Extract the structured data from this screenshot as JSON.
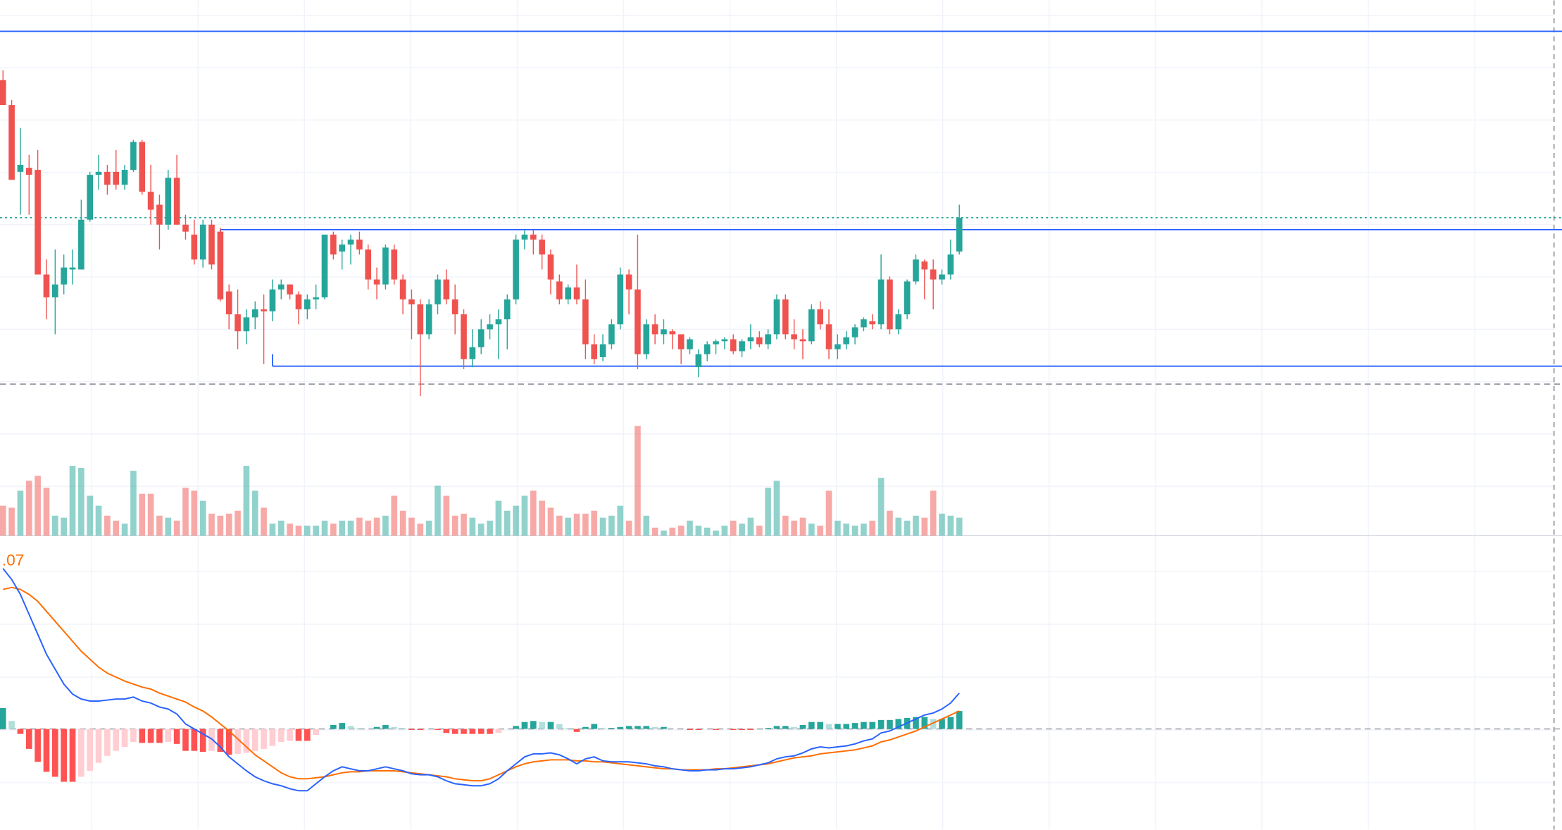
{
  "chart_data": [
    {
      "type": "candlestick",
      "ylim": [
        0,
        410
      ],
      "up_color": "#26a69a",
      "down_color": "#ef5350",
      "ohlc": [
        [
          330,
          340,
          305,
          305
        ],
        [
          305,
          310,
          230,
          230
        ],
        [
          238,
          282,
          195,
          245
        ],
        [
          242,
          255,
          195,
          235
        ],
        [
          240,
          260,
          135,
          135
        ],
        [
          135,
          150,
          90,
          112
        ],
        [
          112,
          160,
          75,
          125
        ],
        [
          125,
          155,
          115,
          142
        ],
        [
          140,
          160,
          125,
          142
        ],
        [
          140,
          210,
          140,
          190
        ],
        [
          190,
          238,
          188,
          235
        ],
        [
          235,
          255,
          220,
          238
        ],
        [
          238,
          245,
          215,
          225
        ],
        [
          238,
          260,
          220,
          225
        ],
        [
          225,
          245,
          220,
          240
        ],
        [
          240,
          270,
          238,
          268
        ],
        [
          268,
          270,
          215,
          218
        ],
        [
          218,
          245,
          185,
          200
        ],
        [
          205,
          215,
          160,
          185
        ],
        [
          185,
          240,
          180,
          232
        ],
        [
          232,
          255,
          185,
          185
        ],
        [
          185,
          195,
          170,
          178
        ],
        [
          175,
          190,
          145,
          150
        ],
        [
          150,
          190,
          142,
          185
        ],
        [
          185,
          190,
          140,
          145
        ],
        [
          178,
          182,
          108,
          110
        ],
        [
          118,
          125,
          80,
          95
        ],
        [
          95,
          120,
          60,
          78
        ],
        [
          78,
          100,
          65,
          92
        ],
        [
          92,
          108,
          80,
          100
        ],
        [
          100,
          115,
          45,
          98
        ],
        [
          98,
          130,
          88,
          120
        ],
        [
          120,
          130,
          110,
          125
        ],
        [
          125,
          125,
          110,
          115
        ],
        [
          115,
          118,
          85,
          100
        ],
        [
          100,
          115,
          90,
          110
        ],
        [
          110,
          125,
          100,
          112
        ],
        [
          112,
          175,
          110,
          175
        ],
        [
          175,
          178,
          150,
          155
        ],
        [
          158,
          170,
          140,
          165
        ],
        [
          165,
          175,
          145,
          170
        ],
        [
          170,
          178,
          155,
          160
        ],
        [
          160,
          165,
          120,
          130
        ],
        [
          130,
          142,
          110,
          125
        ],
        [
          125,
          165,
          120,
          162
        ],
        [
          160,
          165,
          125,
          130
        ],
        [
          130,
          135,
          95,
          110
        ],
        [
          110,
          120,
          70,
          105
        ],
        [
          105,
          110,
          13,
          75
        ],
        [
          75,
          110,
          70,
          105
        ],
        [
          105,
          135,
          95,
          130
        ],
        [
          130,
          140,
          105,
          110
        ],
        [
          110,
          125,
          75,
          95
        ],
        [
          95,
          100,
          40,
          50
        ],
        [
          50,
          80,
          42,
          62
        ],
        [
          62,
          90,
          55,
          80
        ],
        [
          80,
          95,
          70,
          85
        ],
        [
          85,
          100,
          50,
          90
        ],
        [
          90,
          115,
          60,
          110
        ],
        [
          110,
          175,
          105,
          170
        ],
        [
          170,
          180,
          160,
          175
        ],
        [
          175,
          180,
          155,
          170
        ],
        [
          170,
          175,
          140,
          155
        ],
        [
          155,
          160,
          115,
          130
        ],
        [
          128,
          135,
          105,
          110
        ],
        [
          110,
          125,
          105,
          122
        ],
        [
          122,
          145,
          105,
          110
        ],
        [
          110,
          130,
          50,
          65
        ],
        [
          65,
          75,
          45,
          50
        ],
        [
          52,
          75,
          48,
          65
        ],
        [
          65,
          90,
          60,
          85
        ],
        [
          85,
          142,
          80,
          135
        ],
        [
          135,
          140,
          95,
          120
        ],
        [
          120,
          175,
          40,
          55
        ],
        [
          55,
          90,
          50,
          85
        ],
        [
          85,
          95,
          65,
          75
        ],
        [
          75,
          90,
          65,
          80
        ],
        [
          78,
          80,
          60,
          75
        ],
        [
          75,
          75,
          45,
          60
        ],
        [
          60,
          72,
          55,
          70
        ],
        [
          42,
          60,
          32,
          55
        ],
        [
          55,
          68,
          48,
          65
        ],
        [
          65,
          70,
          55,
          68
        ],
        [
          68,
          72,
          60,
          70
        ],
        [
          70,
          75,
          55,
          58
        ],
        [
          58,
          70,
          52,
          68
        ],
        [
          68,
          85,
          60,
          72
        ],
        [
          72,
          78,
          62,
          65
        ],
        [
          65,
          80,
          60,
          75
        ],
        [
          75,
          115,
          70,
          110
        ],
        [
          110,
          115,
          70,
          75
        ],
        [
          75,
          90,
          60,
          70
        ],
        [
          70,
          80,
          50,
          68
        ],
        [
          68,
          105,
          65,
          100
        ],
        [
          100,
          108,
          80,
          85
        ],
        [
          85,
          100,
          50,
          60
        ],
        [
          60,
          75,
          50,
          65
        ],
        [
          65,
          78,
          60,
          72
        ],
        [
          72,
          85,
          65,
          82
        ],
        [
          82,
          92,
          78,
          90
        ],
        [
          88,
          95,
          80,
          85
        ],
        [
          85,
          155,
          80,
          130
        ],
        [
          130,
          133,
          75,
          80
        ],
        [
          80,
          100,
          75,
          95
        ],
        [
          95,
          130,
          90,
          128
        ],
        [
          128,
          155,
          125,
          150
        ],
        [
          148,
          150,
          110,
          140
        ],
        [
          140,
          150,
          100,
          130
        ],
        [
          130,
          140,
          125,
          135
        ],
        [
          135,
          170,
          130,
          155
        ],
        [
          158,
          205,
          155,
          192
        ]
      ],
      "levels": [
        {
          "value": 379,
          "color": "#2962ff",
          "style": "solid"
        },
        {
          "value": 180,
          "color": "#2962ff",
          "style": "solid",
          "start_bar": 25
        },
        {
          "value": 43,
          "color": "#2962ff",
          "style": "solid",
          "start_bar": 31
        },
        {
          "value": 192,
          "color": "#26a69a",
          "style": "dotted"
        },
        {
          "value": 25,
          "color": "#9598a1",
          "style": "dashed"
        }
      ]
    },
    {
      "type": "volume",
      "ylim": [
        0,
        127
      ],
      "up_color": "rgba(38,166,154,0.5)",
      "down_color": "rgba(239,83,80,0.5)",
      "values": [
        30,
        28,
        45,
        55,
        60,
        48,
        20,
        18,
        70,
        68,
        40,
        30,
        20,
        15,
        12,
        65,
        42,
        42,
        20,
        18,
        15,
        48,
        45,
        35,
        22,
        20,
        22,
        25,
        70,
        45,
        28,
        12,
        15,
        12,
        10,
        10,
        10,
        15,
        12,
        15,
        15,
        18,
        15,
        18,
        20,
        40,
        25,
        18,
        12,
        15,
        50,
        40,
        20,
        22,
        18,
        12,
        15,
        35,
        25,
        30,
        40,
        45,
        35,
        28,
        20,
        18,
        22,
        22,
        25,
        18,
        20,
        30,
        15,
        110,
        20,
        8,
        5,
        8,
        10,
        15,
        10,
        8,
        5,
        10,
        15,
        12,
        18,
        10,
        48,
        55,
        20,
        15,
        18,
        12,
        10,
        45,
        15,
        12,
        10,
        12,
        15,
        58,
        25,
        18,
        15,
        20,
        18,
        45,
        22,
        20,
        18
      ]
    },
    {
      "type": "macd",
      "ylim": [
        -101,
        194
      ],
      "label": ".07",
      "label_color": "#ff6d00",
      "macd": {
        "color": "#2962ff",
        "values": [
          161,
          150,
          135,
          115,
          95,
          75,
          60,
          45,
          35,
          30,
          28,
          28,
          29,
          30,
          30,
          32,
          28,
          26,
          22,
          20,
          15,
          5,
          0,
          -5,
          -10,
          -18,
          -28,
          -35,
          -42,
          -48,
          -52,
          -55,
          -57,
          -60,
          -62,
          -62,
          -55,
          -48,
          -42,
          -38,
          -40,
          -42,
          -42,
          -40,
          -38,
          -40,
          -42,
          -45,
          -46,
          -46,
          -48,
          -52,
          -55,
          -56,
          -57,
          -57,
          -55,
          -50,
          -42,
          -35,
          -28,
          -25,
          -25,
          -24,
          -26,
          -30,
          -35,
          -30,
          -28,
          -32,
          -33,
          -33,
          -33,
          -34,
          -35,
          -37,
          -38,
          -40,
          -41,
          -42,
          -42,
          -41,
          -41,
          -40,
          -40,
          -39,
          -38,
          -36,
          -34,
          -30,
          -28,
          -27,
          -24,
          -20,
          -18,
          -19,
          -18,
          -17,
          -15,
          -12,
          -10,
          -4,
          -2,
          2,
          6,
          10,
          14,
          16,
          20,
          26,
          36
        ]
      },
      "signal": {
        "color": "#ff6d00",
        "values": [
          140,
          142,
          140,
          135,
          128,
          118,
          108,
          98,
          88,
          78,
          70,
          62,
          56,
          52,
          48,
          45,
          42,
          40,
          36,
          33,
          30,
          27,
          22,
          18,
          12,
          5,
          -2,
          -10,
          -18,
          -26,
          -32,
          -38,
          -44,
          -48,
          -50,
          -50,
          -49,
          -48,
          -46,
          -44,
          -43,
          -43,
          -42,
          -42,
          -42,
          -42,
          -43,
          -44,
          -45,
          -46,
          -47,
          -48,
          -50,
          -51,
          -52,
          -52,
          -50,
          -46,
          -42,
          -38,
          -35,
          -33,
          -32,
          -31,
          -31,
          -31,
          -32,
          -32,
          -33,
          -33,
          -34,
          -35,
          -36,
          -37,
          -38,
          -39,
          -40,
          -40,
          -41,
          -41,
          -41,
          -41,
          -40,
          -40,
          -39,
          -38,
          -37,
          -36,
          -35,
          -33,
          -31,
          -29,
          -28,
          -27,
          -25,
          -24,
          -23,
          -22,
          -21,
          -19,
          -17,
          -13,
          -11,
          -8,
          -5,
          -2,
          2,
          6,
          10,
          14,
          18
        ]
      },
      "histogram": {
        "colors": [
          "#26a69a",
          "#b2dfdb",
          "#ff5252",
          "#ffcdd2"
        ],
        "values": [
          21,
          8,
          -5,
          -20,
          -33,
          -43,
          -48,
          -53,
          -53,
          -48,
          -42,
          -34,
          -27,
          -22,
          -18,
          -13,
          -14,
          -14,
          -14,
          -13,
          -15,
          -22,
          -22,
          -23,
          -22,
          -23,
          -26,
          -25,
          -24,
          -22,
          -20,
          -17,
          -13,
          -12,
          -12,
          -12,
          -6,
          0,
          4,
          6,
          3,
          1,
          0,
          2,
          4,
          2,
          1,
          -1,
          -1,
          0,
          -1,
          -4,
          -5,
          -5,
          -5,
          -5,
          -5,
          -4,
          0,
          3,
          7,
          8,
          7,
          7,
          5,
          1,
          -3,
          2,
          5,
          1,
          1,
          2,
          3,
          3,
          3,
          2,
          2,
          0,
          0,
          -1,
          -1,
          0,
          -1,
          0,
          -1,
          -1,
          -1,
          0,
          1,
          3,
          3,
          2,
          4,
          7,
          7,
          5,
          5,
          5,
          6,
          7,
          7,
          9,
          9,
          10,
          11,
          12,
          12,
          10,
          10,
          12,
          18
        ]
      }
    }
  ]
}
